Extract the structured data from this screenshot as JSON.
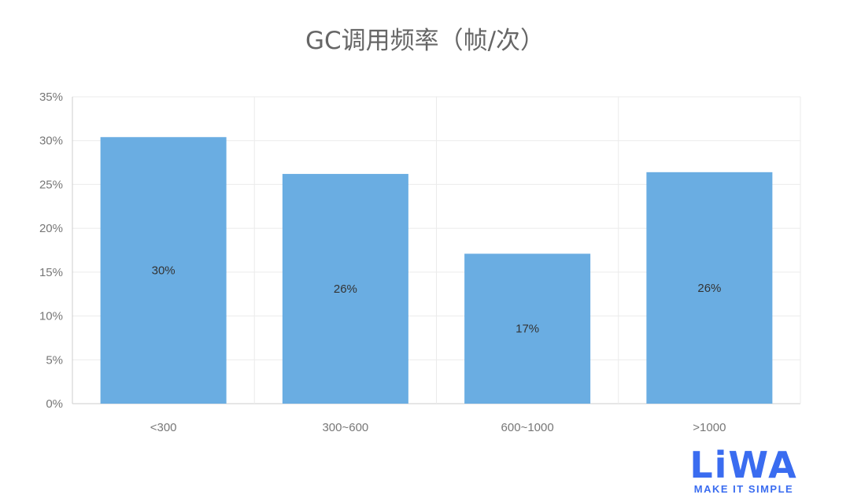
{
  "chart_data": {
    "type": "bar",
    "title": "GC调用频率（帧/次）",
    "categories": [
      "<300",
      "300~600",
      "600~1000",
      ">1000"
    ],
    "values": [
      30.4,
      26.2,
      17.1,
      26.4
    ],
    "data_labels": [
      "30%",
      "26%",
      "17%",
      "26%"
    ],
    "xlabel": "",
    "ylabel": "",
    "ylim": [
      0,
      35
    ],
    "yticks": [
      "0%",
      "5%",
      "10%",
      "15%",
      "20%",
      "25%",
      "30%",
      "35%"
    ],
    "grid": true,
    "bar_color": "#6aade2"
  },
  "logo": {
    "text": "LiWA",
    "tagline": "MAKE IT SIMPLE",
    "color": "#3a6cf0"
  }
}
